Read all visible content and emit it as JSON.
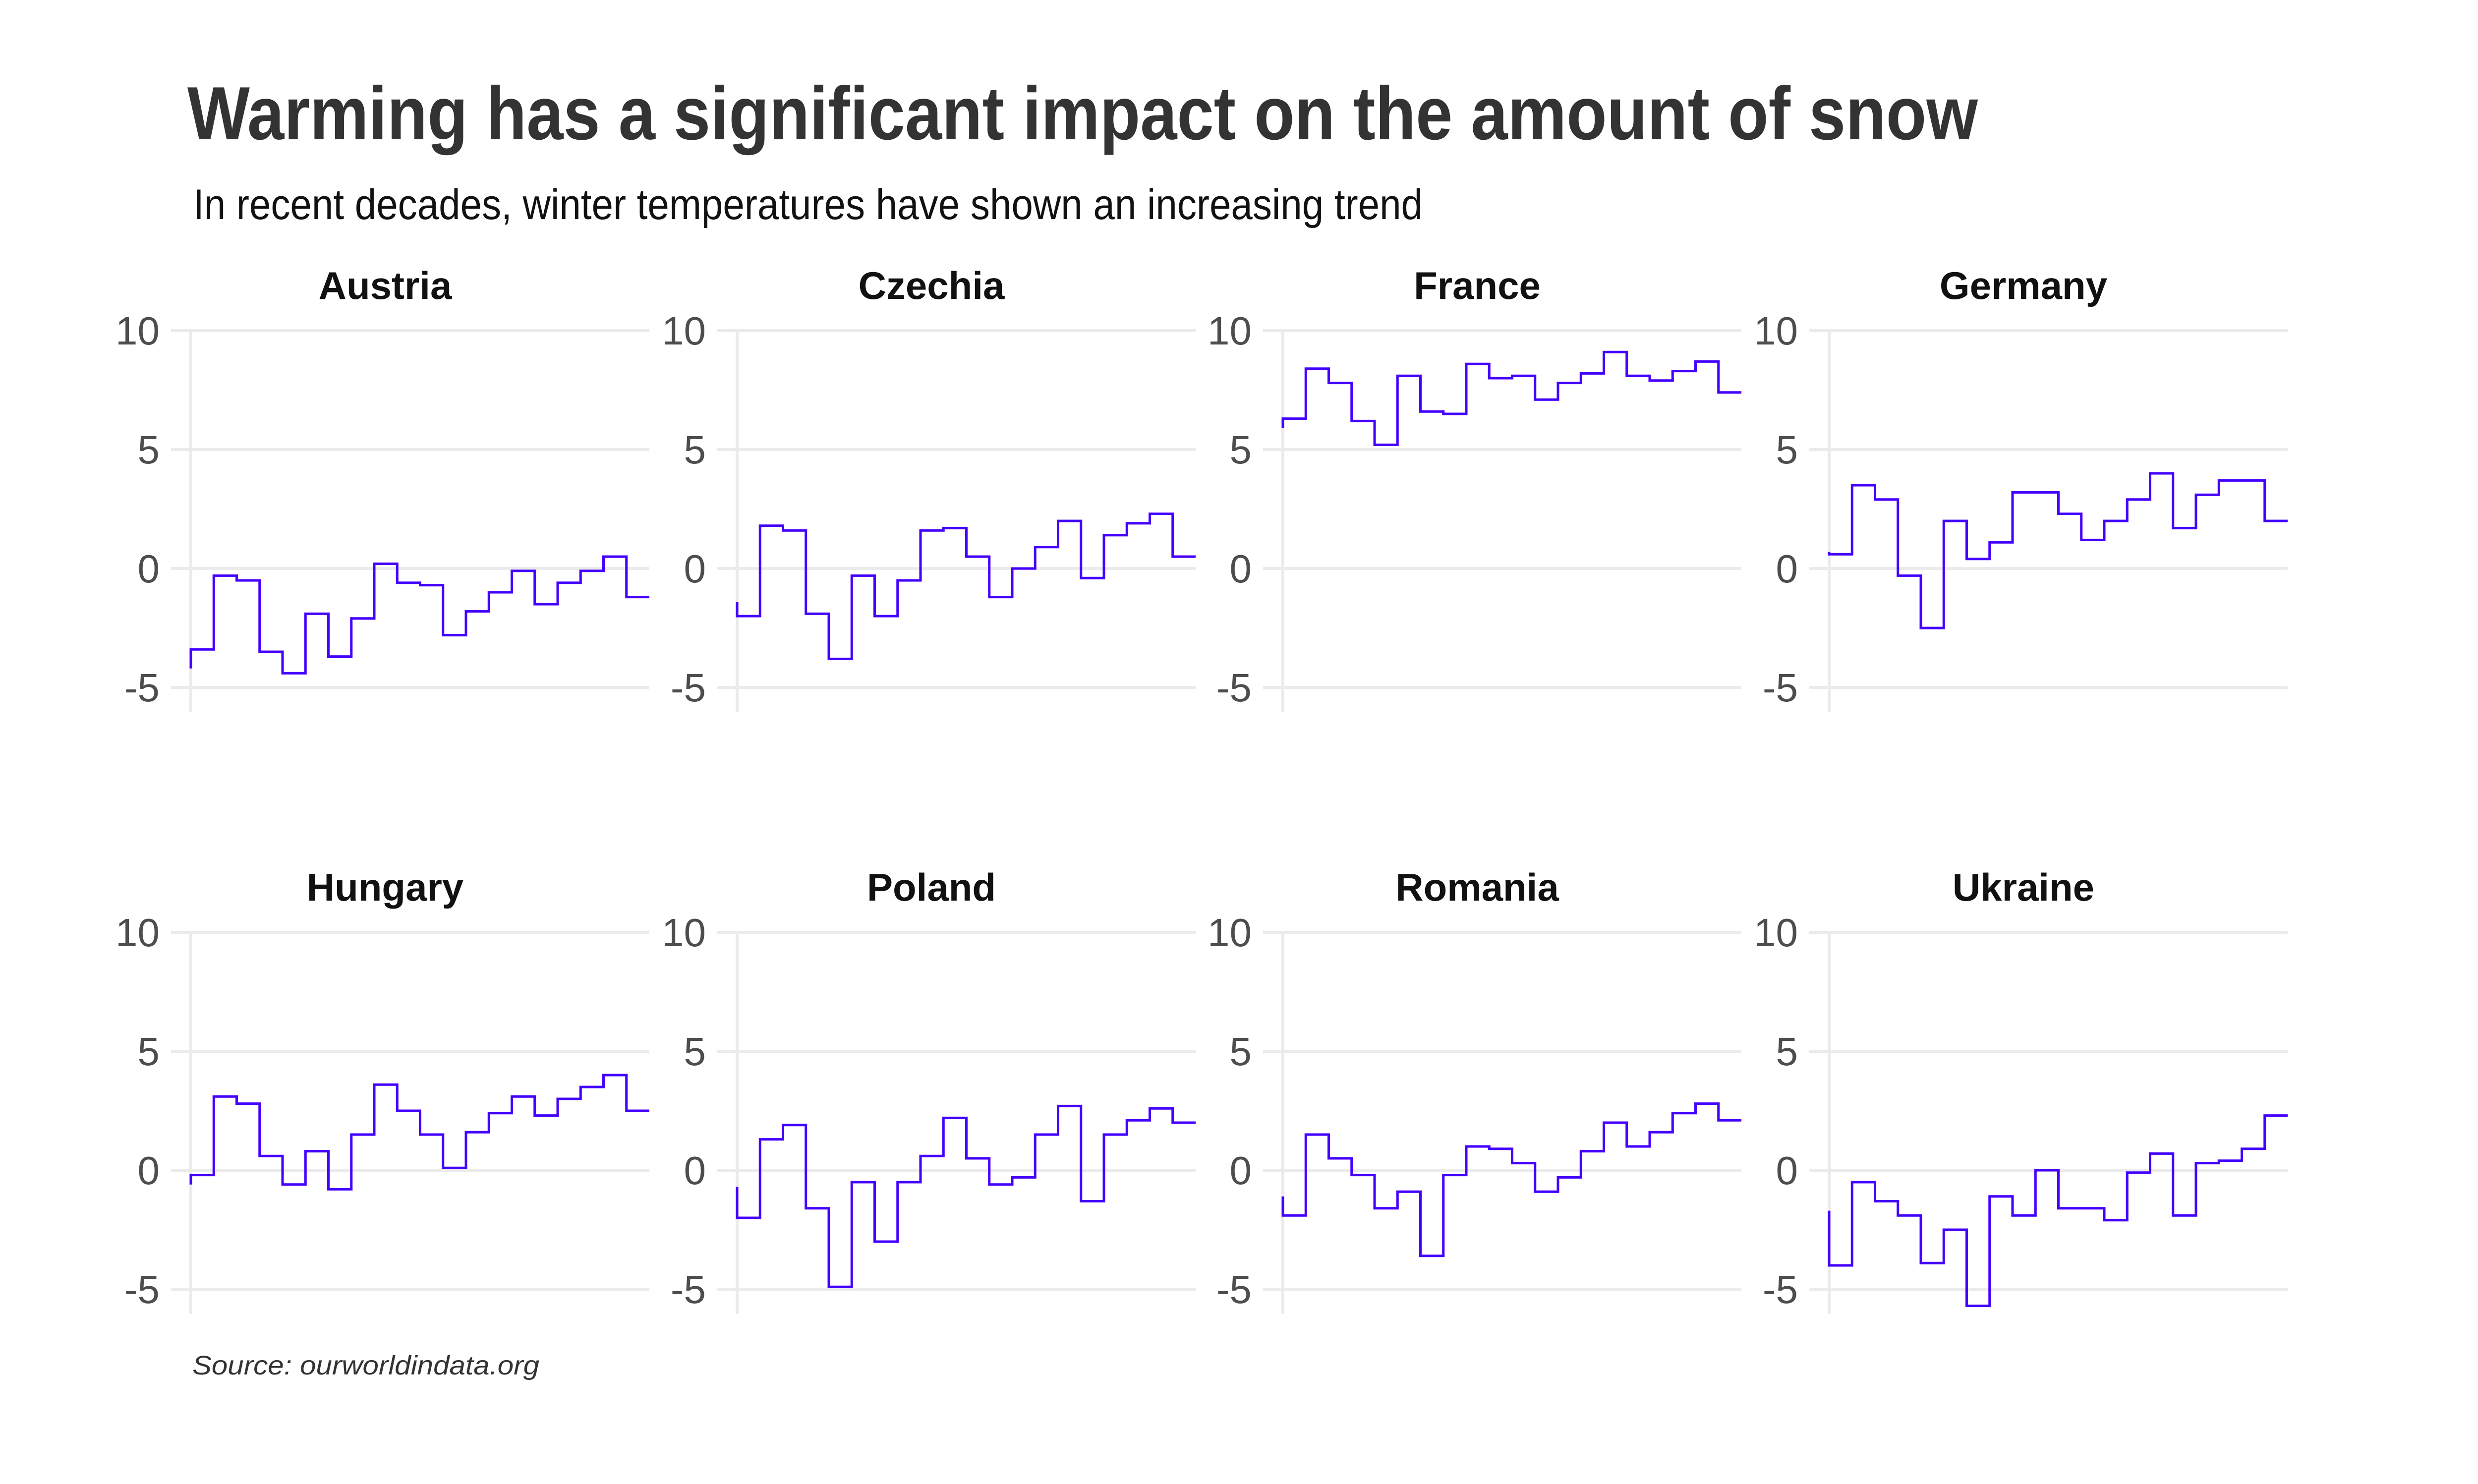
{
  "header": {
    "title": "Warming has a significant impact on the amount of snow",
    "subtitle": "In recent decades, winter temperatures have shown an increasing trend"
  },
  "footer": {
    "source": "Source: ourworldindata.org"
  },
  "colors": {
    "line": "#4400ff",
    "grid": "#ebebeb",
    "tick_label": "#4d4d4d",
    "title": "#333333"
  },
  "chart_data": {
    "type": "line",
    "style": "step",
    "layout": "small-multiples 2x4",
    "title": "Warming has a significant impact on the amount of snow",
    "subtitle": "In recent decades, winter temperatures have shown an increasing trend",
    "xlabel": "",
    "ylabel": "",
    "ylim": [
      -5,
      10
    ],
    "yticks": [
      10,
      5,
      0,
      -5
    ],
    "ytick_labels": [
      "10",
      "5",
      "0",
      "-5"
    ],
    "grid": true,
    "legend": "none",
    "panels": [
      {
        "name": "Austria",
        "start": -4.2,
        "values": [
          -3.4,
          -0.3,
          -0.5,
          -3.5,
          -4.4,
          -1.9,
          -3.7,
          -2.1,
          0.2,
          -0.6,
          -0.7,
          -2.8,
          -1.8,
          -1.0,
          -0.1,
          -1.5,
          -0.6,
          -0.1,
          0.5,
          -1.2
        ]
      },
      {
        "name": "Czechia",
        "start": -1.4,
        "values": [
          -2.0,
          1.8,
          1.6,
          -1.9,
          -3.8,
          -0.3,
          -2.0,
          -0.5,
          1.6,
          1.7,
          0.5,
          -1.2,
          0.0,
          0.9,
          2.0,
          -0.4,
          1.4,
          1.9,
          2.3,
          0.5
        ]
      },
      {
        "name": "France",
        "start": 5.9,
        "values": [
          6.3,
          8.4,
          7.8,
          6.2,
          5.2,
          8.1,
          6.6,
          6.5,
          8.6,
          8.0,
          8.1,
          7.1,
          7.8,
          8.2,
          9.1,
          8.1,
          7.9,
          8.3,
          8.7,
          7.4
        ]
      },
      {
        "name": "Germany",
        "start": 0.7,
        "values": [
          0.6,
          3.5,
          2.9,
          -0.3,
          -2.5,
          2.0,
          0.4,
          1.1,
          3.2,
          3.2,
          2.3,
          1.2,
          2.0,
          2.9,
          4.0,
          1.7,
          3.1,
          3.7,
          3.7,
          2.0
        ]
      },
      {
        "name": "Hungary",
        "start": -0.6,
        "values": [
          -0.2,
          3.1,
          2.8,
          0.6,
          -0.6,
          0.8,
          -0.8,
          1.5,
          3.6,
          2.5,
          1.5,
          0.1,
          1.6,
          2.4,
          3.1,
          2.3,
          3.0,
          3.5,
          4.0,
          2.5
        ]
      },
      {
        "name": "Poland",
        "start": -0.7,
        "values": [
          -2.0,
          1.3,
          1.9,
          -1.6,
          -4.9,
          -0.5,
          -3.0,
          -0.5,
          0.6,
          2.2,
          0.5,
          -0.6,
          -0.3,
          1.5,
          2.7,
          -1.3,
          1.5,
          2.1,
          2.6,
          2.0
        ]
      },
      {
        "name": "Romania",
        "start": -1.1,
        "values": [
          -1.9,
          1.5,
          0.5,
          -0.2,
          -1.6,
          -0.9,
          -3.6,
          -0.2,
          1.0,
          0.9,
          0.3,
          -0.9,
          -0.3,
          0.8,
          2.0,
          1.0,
          1.6,
          2.4,
          2.8,
          2.1
        ]
      },
      {
        "name": "Ukraine",
        "start": -1.7,
        "values": [
          -4.0,
          -0.5,
          -1.3,
          -1.9,
          -3.9,
          -2.5,
          -5.7,
          -1.1,
          -1.9,
          0.0,
          -1.6,
          -1.6,
          -2.1,
          -0.1,
          0.7,
          -1.9,
          0.3,
          0.4,
          0.9,
          2.3
        ]
      }
    ]
  }
}
